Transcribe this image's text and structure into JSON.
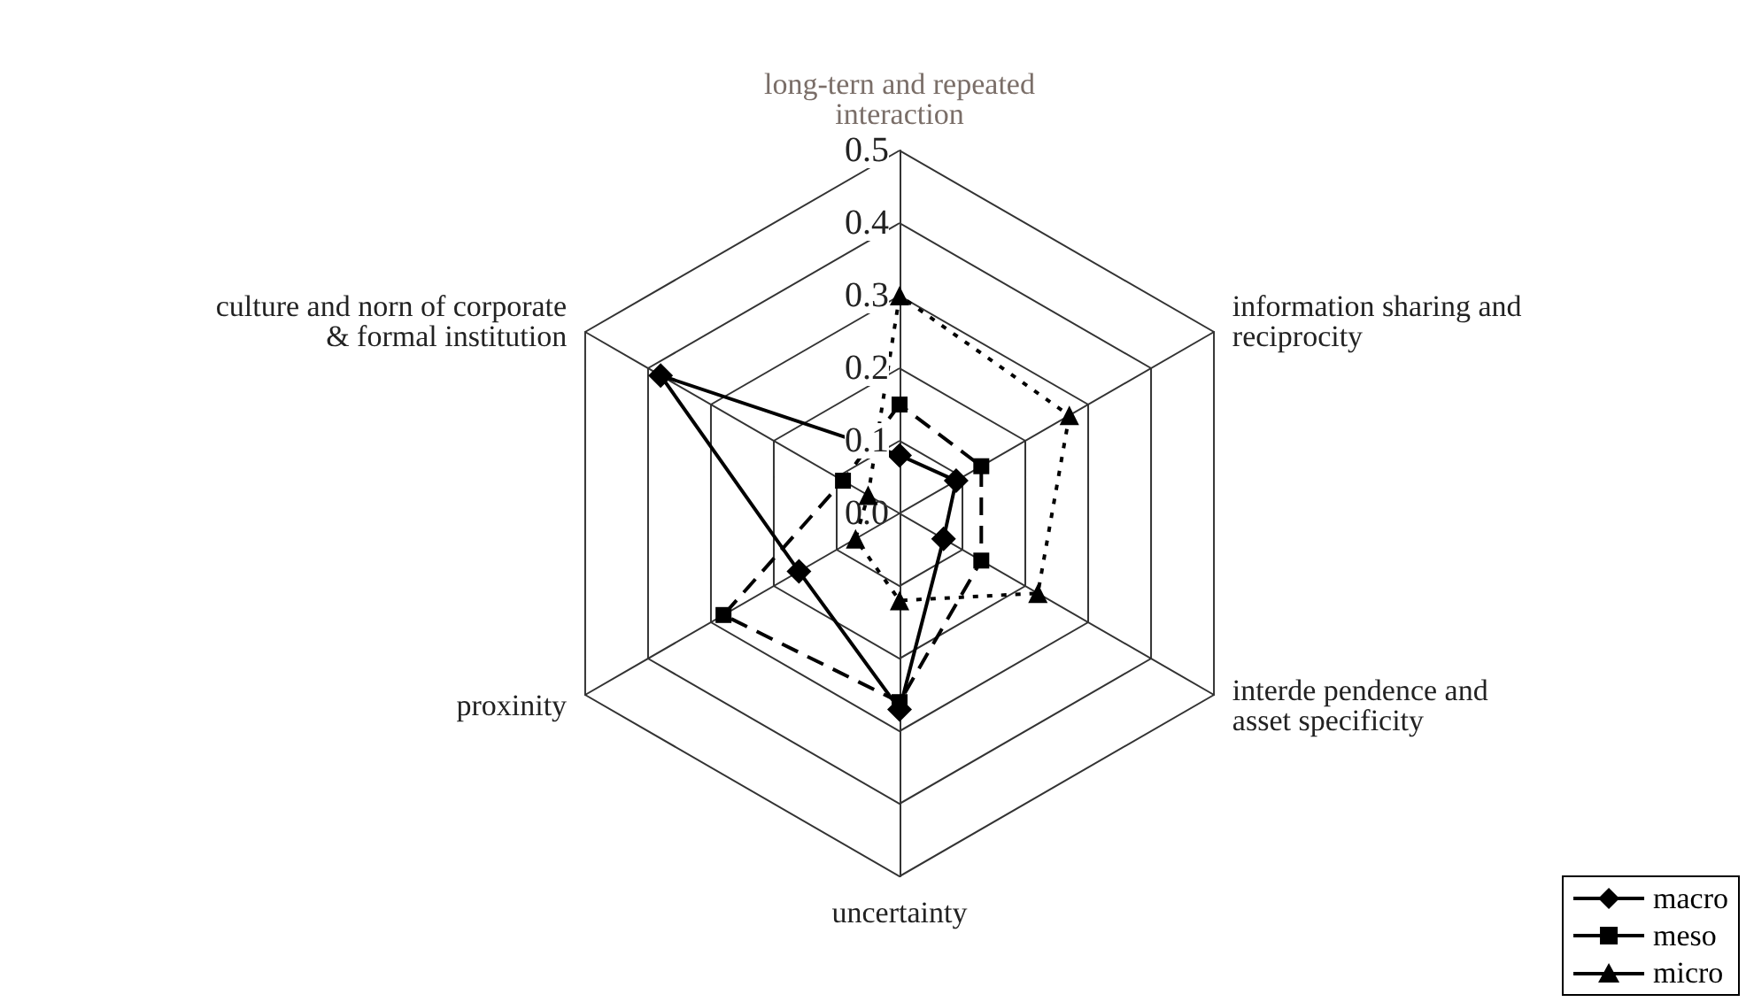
{
  "chart_data": {
    "type": "radar",
    "categories": [
      "long-tern and repeated\ninteraction",
      "information sharing and\nreciprocity",
      "interde pendence and\nasset specificity",
      "uncertainty",
      "proxinity",
      "culture and norn of corporate\n& formal institution"
    ],
    "ylim": [
      0,
      0.5
    ],
    "yticks": [
      {
        "value": 0,
        "label": "0.0"
      },
      {
        "value": 0.1,
        "label": "0.1"
      },
      {
        "value": 0.2,
        "label": "0.2"
      },
      {
        "value": 0.3,
        "label": "0.3"
      },
      {
        "value": 0.4,
        "label": "0.4"
      },
      {
        "value": 0.5,
        "label": "0.5"
      }
    ],
    "series": [
      {
        "name": "macro",
        "color": "#000000",
        "marker": "diamond",
        "line_style": "solid",
        "values": [
          0.08,
          0.09,
          0.07,
          0.27,
          0.16,
          0.38
        ]
      },
      {
        "name": "meso",
        "color": "#000000",
        "marker": "square",
        "line_style": "dashed",
        "values": [
          0.15,
          0.13,
          0.13,
          0.26,
          0.28,
          0.09
        ]
      },
      {
        "name": "micro",
        "color": "#000000",
        "marker": "triangle",
        "line_style": "dotted",
        "values": [
          0.3,
          0.27,
          0.22,
          0.12,
          0.07,
          0.05
        ]
      }
    ],
    "grid": true,
    "legend": "bottom right"
  }
}
